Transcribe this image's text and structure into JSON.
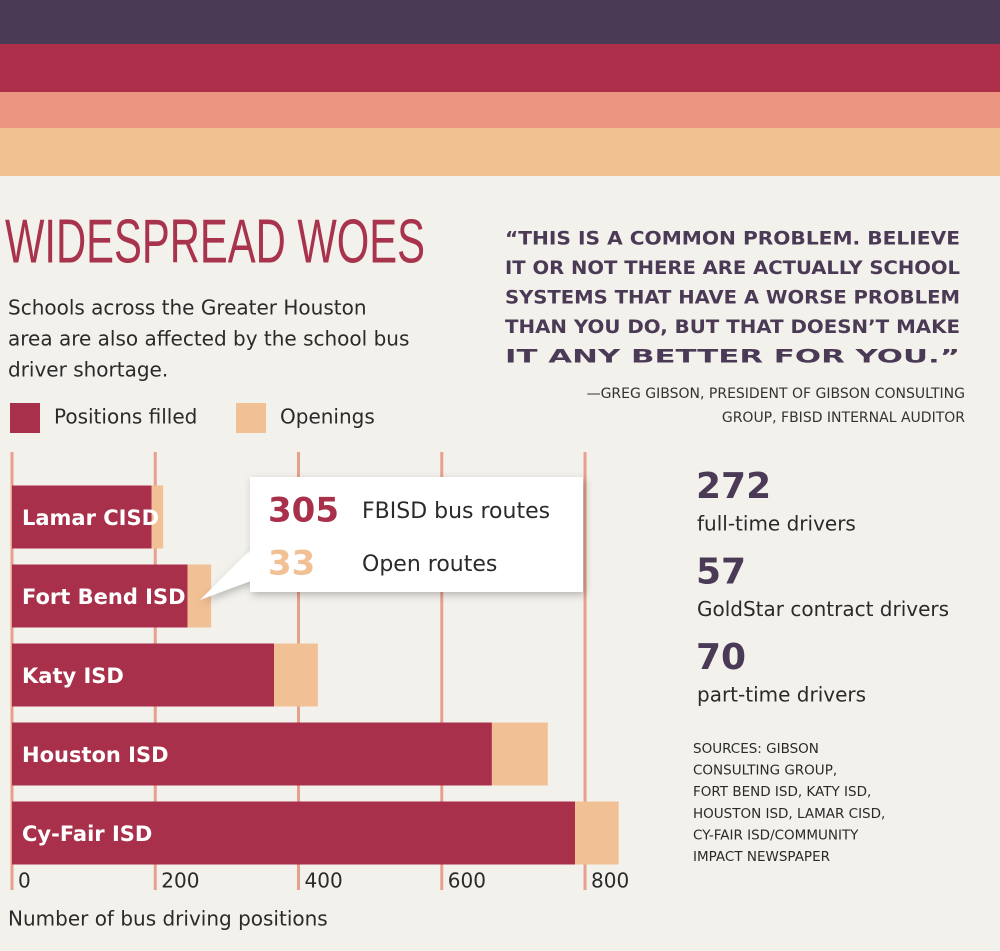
{
  "chart_data": {
    "type": "bar",
    "orientation": "horizontal",
    "stacked": true,
    "title": "WIDESPREAD WOES",
    "subtitle": [
      "Schools across the Greater Houston",
      "area are also affected by the school bus",
      "driver shortage."
    ],
    "categories": [
      "Lamar CISD",
      "Fort Bend ISD",
      "Katy ISD",
      "Houston ISD",
      "Cy-Fair  ISD"
    ],
    "series": [
      {
        "name": "Positions filled",
        "color": "#a8304b",
        "values": [
          195,
          245,
          366,
          670,
          786
        ]
      },
      {
        "name": "Openings",
        "color": "#f1c195",
        "values": [
          16,
          33,
          61,
          78,
          61
        ]
      }
    ],
    "xlim": [
      0,
      860
    ],
    "xticks": [
      0,
      200,
      400,
      600,
      800
    ],
    "grid": true,
    "grid_color": "#e8a08c",
    "xlabel": "Number of bus driving positions"
  },
  "callout": [
    {
      "value": 305,
      "label": "FBISD bus routes",
      "color": "#a8304b"
    },
    {
      "value": 33,
      "label": "Open routes",
      "color": "#f1c195"
    }
  ],
  "quote": {
    "lines": [
      "“THIS IS A COMMON PROBLEM. BELIEVE",
      "IT OR NOT THERE ARE ACTUALLY SCHOOL",
      "SYSTEMS THAT HAVE A WORSE PROBLEM",
      "THAN YOU DO, BUT THAT DOESN’T MAKE",
      "IT ANY BETTER FOR YOU.”"
    ],
    "attribution": [
      "—GREG GIBSON, PRESIDENT OF GIBSON CONSULTING",
      "GROUP, FBISD INTERNAL AUDITOR"
    ]
  },
  "stats": [
    {
      "value": 272,
      "label": "full-time drivers"
    },
    {
      "value": 57,
      "label": "GoldStar contract drivers"
    },
    {
      "value": 70,
      "label": "part-time drivers"
    }
  ],
  "sources": [
    "SOURCES: GIBSON",
    "CONSULTING GROUP,",
    "FORT BEND ISD, KATY ISD,",
    "HOUSTON ISD, LAMAR CISD,",
    "CY-FAIR ISD/COMMUNITY",
    "IMPACT NEWSPAPER"
  ]
}
